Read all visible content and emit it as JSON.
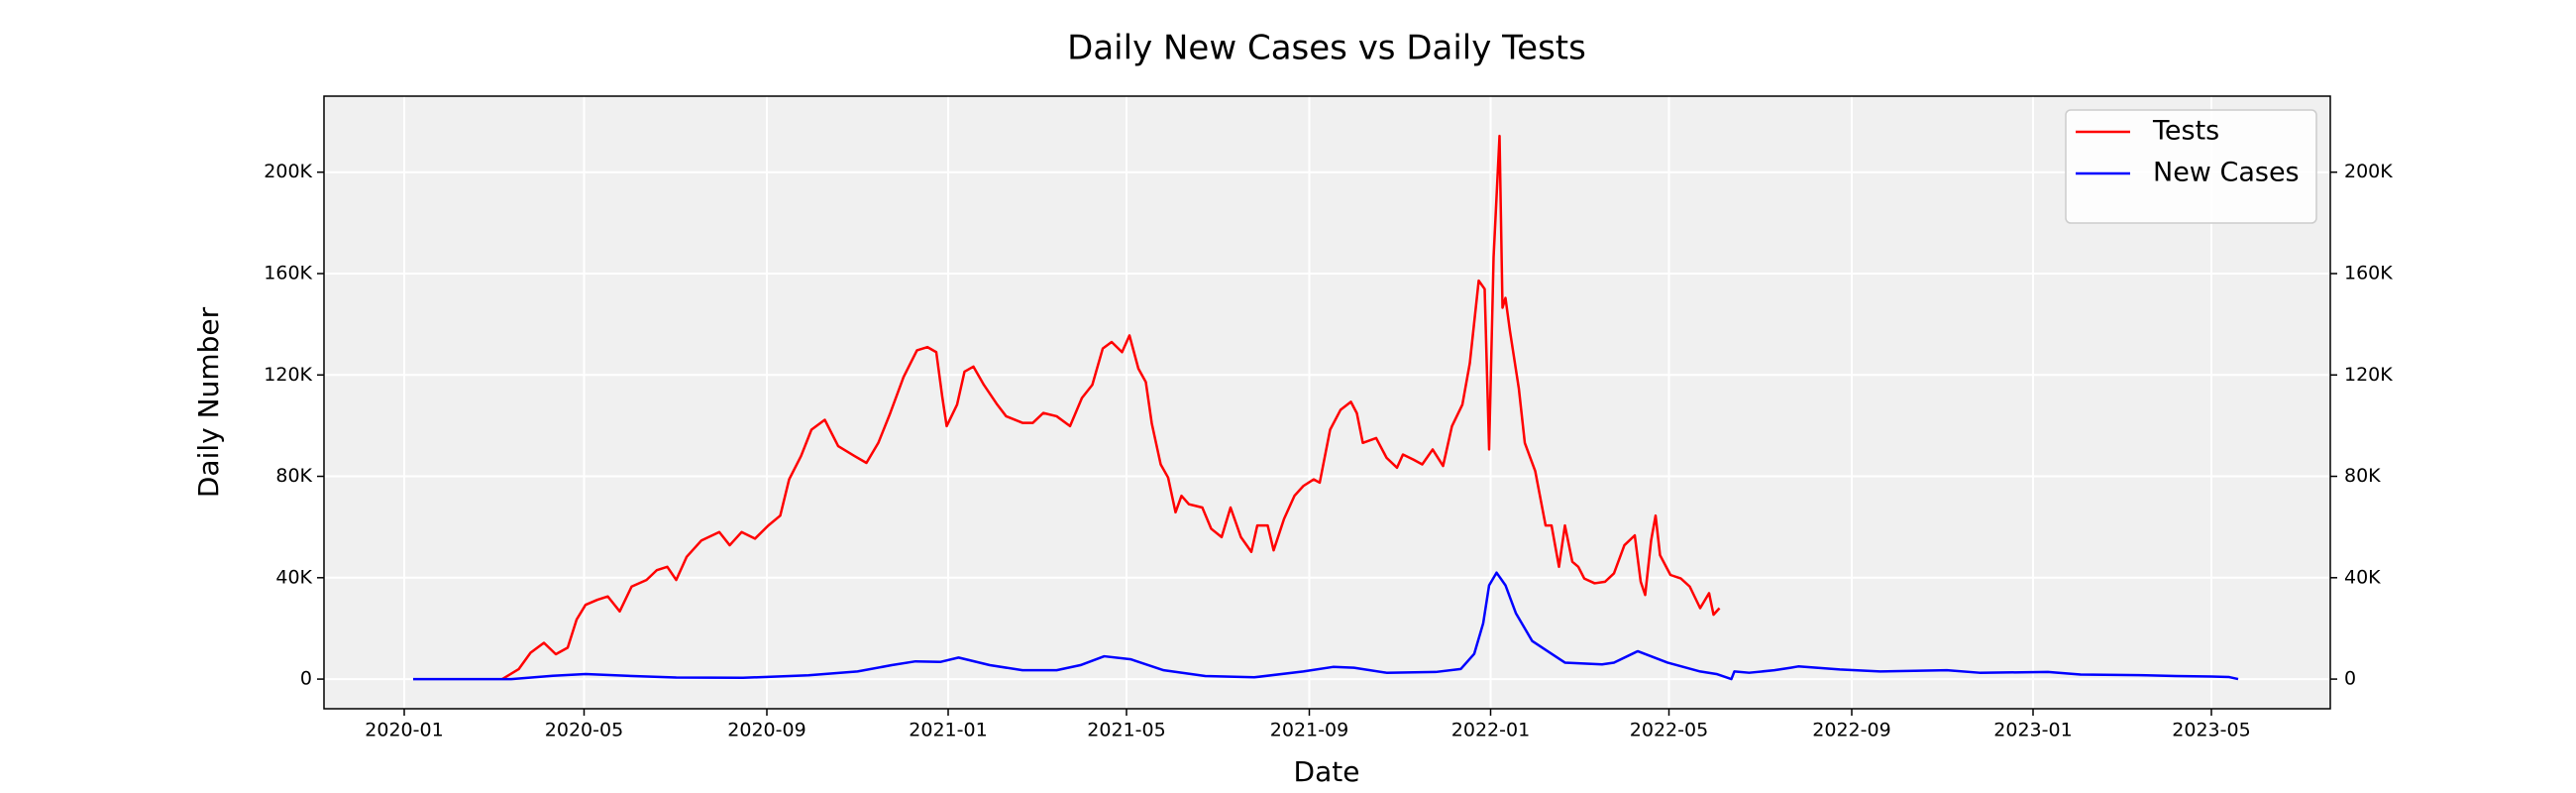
{
  "chart_data": {
    "type": "line",
    "title": "Daily New Cases vs Daily Tests",
    "xlabel": "Date",
    "ylabel": "Daily Number",
    "xlim": [
      "2019-11-08",
      "2023-07-20"
    ],
    "xticks": [
      "2020-01",
      "2020-05",
      "2020-09",
      "2021-01",
      "2021-05",
      "2021-09",
      "2022-01",
      "2022-05",
      "2022-09",
      "2023-01",
      "2023-05"
    ],
    "ylim": [
      -11700,
      230000
    ],
    "yticks": [
      0,
      {
        "value": 40000,
        "label": "40K"
      },
      {
        "value": 80000,
        "label": "80K"
      },
      {
        "value": 120000,
        "label": "120K"
      },
      {
        "value": 160000,
        "label": "160K"
      },
      {
        "value": 200000,
        "label": "200K"
      }
    ],
    "y2lim": [
      -11700,
      230000
    ],
    "y2ticks": [
      0,
      {
        "value": 40000,
        "label": "40K"
      },
      {
        "value": 80000,
        "label": "80K"
      },
      {
        "value": 120000,
        "label": "120K"
      },
      {
        "value": 160000,
        "label": "160K"
      },
      {
        "value": 200000,
        "label": "200K"
      }
    ],
    "grid": true,
    "legend": "upper right",
    "series": [
      {
        "name": "Tests",
        "color": "#ff0000",
        "x": [
          "2020-03-07",
          "2020-03-18",
          "2020-03-26",
          "2020-04-04",
          "2020-04-12",
          "2020-04-20",
          "2020-04-26",
          "2020-05-02",
          "2020-05-10",
          "2020-05-17",
          "2020-05-25",
          "2020-06-02",
          "2020-06-12",
          "2020-06-19",
          "2020-06-26",
          "2020-07-02",
          "2020-07-09",
          "2020-07-19",
          "2020-07-31",
          "2020-08-07",
          "2020-08-15",
          "2020-08-24",
          "2020-09-02",
          "2020-09-10",
          "2020-09-16",
          "2020-09-24",
          "2020-10-01",
          "2020-10-10",
          "2020-10-19",
          "2020-10-30",
          "2020-11-07",
          "2020-11-15",
          "2020-11-23",
          "2020-12-02",
          "2020-12-11",
          "2020-12-18",
          "2020-12-24",
          "2020-12-28",
          "2020-12-31",
          "2021-01-07",
          "2021-01-12",
          "2021-01-18",
          "2021-01-25",
          "2021-02-03",
          "2021-02-09",
          "2021-02-20",
          "2021-02-27",
          "2021-03-06",
          "2021-03-15",
          "2021-03-24",
          "2021-04-01",
          "2021-04-08",
          "2021-04-15",
          "2021-04-21",
          "2021-04-28",
          "2021-05-03",
          "2021-05-09",
          "2021-05-14",
          "2021-05-18",
          "2021-05-24",
          "2021-05-29",
          "2021-06-03",
          "2021-06-07",
          "2021-06-12",
          "2021-06-21",
          "2021-06-27",
          "2021-07-04",
          "2021-07-10",
          "2021-07-17",
          "2021-07-24",
          "2021-07-28",
          "2021-08-04",
          "2021-08-08",
          "2021-08-15",
          "2021-08-22",
          "2021-08-28",
          "2021-09-04",
          "2021-09-08",
          "2021-09-15",
          "2021-09-22",
          "2021-09-29",
          "2021-10-03",
          "2021-10-07",
          "2021-10-16",
          "2021-10-23",
          "2021-10-30",
          "2021-11-03",
          "2021-11-10",
          "2021-11-16",
          "2021-11-23",
          "2021-11-30",
          "2021-12-06",
          "2021-12-13",
          "2021-12-18",
          "2021-12-21",
          "2021-12-24",
          "2021-12-28",
          "2021-12-31",
          "2022-01-03",
          "2022-01-07",
          "2022-01-09",
          "2022-01-11",
          "2022-01-14",
          "2022-01-20",
          "2022-01-24",
          "2022-01-31",
          "2022-02-07",
          "2022-02-11",
          "2022-02-16",
          "2022-02-20",
          "2022-02-25",
          "2022-03-01",
          "2022-03-05",
          "2022-03-12",
          "2022-03-19",
          "2022-03-25",
          "2022-04-01",
          "2022-04-08",
          "2022-04-12",
          "2022-04-15",
          "2022-04-19",
          "2022-04-22",
          "2022-04-25",
          "2022-05-02",
          "2022-05-09",
          "2022-05-15",
          "2022-05-22",
          "2022-05-28",
          "2022-05-31",
          "2022-06-04"
        ],
        "values": [
          0,
          3900,
          10400,
          14300,
          9800,
          12400,
          23500,
          29300,
          31300,
          32600,
          26700,
          36500,
          39100,
          43000,
          44300,
          39100,
          48200,
          54700,
          58000,
          52800,
          58000,
          55400,
          60600,
          64500,
          78800,
          88000,
          98400,
          102300,
          91900,
          88000,
          85300,
          93200,
          104900,
          119200,
          129700,
          131000,
          129000,
          111500,
          99800,
          108300,
          121300,
          123300,
          116100,
          108300,
          103700,
          101100,
          101100,
          105000,
          103700,
          99800,
          110900,
          116100,
          130400,
          133000,
          129000,
          135600,
          122500,
          117200,
          100900,
          84700,
          79500,
          65800,
          72300,
          69000,
          67700,
          59300,
          56000,
          67700,
          56000,
          50200,
          60600,
          60600,
          50800,
          63200,
          72300,
          76200,
          78800,
          77500,
          98400,
          106200,
          109400,
          104900,
          93200,
          95100,
          87300,
          83400,
          88600,
          86600,
          84700,
          90600,
          84100,
          99800,
          108300,
          124600,
          140900,
          157200,
          153900,
          90600,
          166400,
          214300,
          146500,
          150400,
          137400,
          114600,
          93200,
          82100,
          60600,
          60600,
          44300,
          60600,
          46300,
          44300,
          39700,
          37800,
          38400,
          41700,
          52800,
          56700,
          38400,
          33200,
          54700,
          64500,
          48900,
          41100,
          39700,
          36500,
          28000,
          33900,
          25400,
          28000
        ]
      },
      {
        "name": "New Cases",
        "color": "#0000ff",
        "axis": "y2",
        "x": [
          "2020-01-07",
          "2020-03-13",
          "2020-04-10",
          "2020-05-02",
          "2020-05-30",
          "2020-07-02",
          "2020-08-16",
          "2020-09-29",
          "2020-11-01",
          "2020-11-24",
          "2020-12-10",
          "2020-12-27",
          "2021-01-08",
          "2021-01-29",
          "2021-02-20",
          "2021-03-15",
          "2021-03-31",
          "2021-04-16",
          "2021-05-04",
          "2021-05-26",
          "2021-06-23",
          "2021-07-26",
          "2021-08-28",
          "2021-09-17",
          "2021-10-01",
          "2021-10-23",
          "2021-11-25",
          "2021-12-12",
          "2021-12-21",
          "2021-12-27",
          "2021-12-31",
          "2022-01-05",
          "2022-01-11",
          "2022-01-18",
          "2022-01-29",
          "2022-02-11",
          "2022-02-20",
          "2022-03-17",
          "2022-03-25",
          "2022-04-10",
          "2022-04-30",
          "2022-05-22",
          "2022-06-02",
          "2022-06-12",
          "2022-06-14",
          "2022-06-24",
          "2022-07-11",
          "2022-07-22",
          "2022-07-27",
          "2022-08-24",
          "2022-09-20",
          "2022-11-04",
          "2022-11-26",
          "2023-01-11",
          "2023-02-02",
          "2023-03-18",
          "2023-04-07",
          "2023-05-01",
          "2023-05-13",
          "2023-05-19"
        ],
        "values": [
          0,
          0,
          1300,
          2000,
          1300,
          600,
          500,
          1500,
          3000,
          5500,
          7000,
          6800,
          8500,
          5500,
          3500,
          3500,
          5500,
          9000,
          7800,
          3500,
          1200,
          700,
          3000,
          4800,
          4500,
          2500,
          2800,
          4000,
          10000,
          22000,
          37000,
          42000,
          37000,
          26000,
          15000,
          10000,
          6500,
          5800,
          6500,
          11000,
          6500,
          3000,
          2000,
          0,
          3000,
          2500,
          3500,
          4500,
          5000,
          3800,
          3000,
          3500,
          2500,
          2800,
          1800,
          1500,
          1200,
          1000,
          800,
          0
        ]
      }
    ]
  }
}
